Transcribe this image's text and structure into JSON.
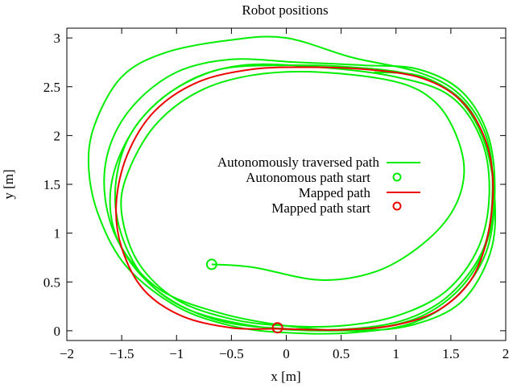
{
  "chart_data": {
    "type": "line",
    "title": "Robot positions",
    "xlabel": "x [m]",
    "ylabel": "y [m]",
    "xlim": [
      -2,
      2
    ],
    "ylim": [
      -0.1,
      3.1
    ],
    "xticks": [
      -2,
      -1.5,
      -1,
      -0.5,
      0,
      0.5,
      1,
      1.5,
      2
    ],
    "yticks": [
      0,
      0.5,
      1,
      1.5,
      2,
      2.5,
      3
    ],
    "xtick_labels": [
      "−2",
      "−1.5",
      "−1",
      "−0.5",
      "0",
      "0.5",
      "1",
      "1.5",
      "2"
    ],
    "ytick_labels": [
      "0",
      "0.5",
      "1",
      "1.5",
      "2",
      "2.5",
      "3"
    ],
    "grid": false,
    "legend_position": "center-right",
    "series": [
      {
        "name": "Autonomously traversed path",
        "color": "#00ee00",
        "style": "line",
        "points": [
          [
            -0.68,
            0.68
          ],
          [
            -0.3,
            0.65
          ],
          [
            0.3,
            0.52
          ],
          [
            0.8,
            0.6
          ],
          [
            1.2,
            0.85
          ],
          [
            1.5,
            1.2
          ],
          [
            1.62,
            1.6
          ],
          [
            1.55,
            2.0
          ],
          [
            1.35,
            2.35
          ],
          [
            1.0,
            2.55
          ],
          [
            0.3,
            2.65
          ],
          [
            -0.3,
            2.62
          ],
          [
            -0.8,
            2.45
          ],
          [
            -1.2,
            2.1
          ],
          [
            -1.45,
            1.6
          ],
          [
            -1.5,
            1.2
          ],
          [
            -1.35,
            0.7
          ],
          [
            -1.0,
            0.32
          ],
          [
            -0.5,
            0.12
          ],
          [
            0.0,
            0.05
          ],
          [
            0.5,
            0.05
          ],
          [
            1.0,
            0.15
          ],
          [
            1.45,
            0.4
          ],
          [
            1.75,
            0.85
          ],
          [
            1.85,
            1.4
          ],
          [
            1.78,
            1.95
          ],
          [
            1.5,
            2.4
          ],
          [
            1.0,
            2.6
          ],
          [
            0.3,
            2.7
          ],
          [
            -0.4,
            2.72
          ],
          [
            -0.9,
            2.55
          ],
          [
            -1.3,
            2.2
          ],
          [
            -1.55,
            1.7
          ],
          [
            -1.6,
            1.2
          ],
          [
            -1.45,
            0.75
          ],
          [
            -1.1,
            0.35
          ],
          [
            -0.6,
            0.1
          ],
          [
            0.0,
            0.02
          ],
          [
            0.6,
            0.02
          ],
          [
            1.1,
            0.12
          ],
          [
            1.5,
            0.38
          ],
          [
            1.8,
            0.85
          ],
          [
            1.88,
            1.45
          ],
          [
            1.82,
            2.0
          ],
          [
            1.58,
            2.42
          ],
          [
            1.2,
            2.65
          ],
          [
            0.6,
            2.8
          ],
          [
            0.0,
            3.0
          ],
          [
            -0.5,
            2.98
          ],
          [
            -1.1,
            2.85
          ],
          [
            -1.5,
            2.6
          ],
          [
            -1.75,
            2.1
          ],
          [
            -1.8,
            1.65
          ],
          [
            -1.7,
            1.15
          ],
          [
            -1.45,
            0.65
          ],
          [
            -1.0,
            0.25
          ],
          [
            -0.5,
            0.05
          ],
          [
            0.0,
            -0.02
          ],
          [
            0.6,
            -0.02
          ],
          [
            1.15,
            0.08
          ],
          [
            1.55,
            0.35
          ],
          [
            1.82,
            0.8
          ],
          [
            1.9,
            1.4
          ],
          [
            1.84,
            2.0
          ],
          [
            1.6,
            2.45
          ],
          [
            1.2,
            2.68
          ],
          [
            0.7,
            2.72
          ],
          [
            0.1,
            2.75
          ],
          [
            -0.5,
            2.78
          ],
          [
            -1.0,
            2.65
          ],
          [
            -1.4,
            2.3
          ],
          [
            -1.62,
            1.85
          ],
          [
            -1.65,
            1.35
          ],
          [
            -1.5,
            0.85
          ],
          [
            -1.15,
            0.42
          ],
          [
            -0.6,
            0.18
          ],
          [
            0.0,
            0.05
          ],
          [
            0.6,
            0.0
          ],
          [
            1.15,
            0.06
          ],
          [
            1.6,
            0.3
          ],
          [
            1.86,
            0.8
          ],
          [
            1.9,
            1.35
          ],
          [
            1.8,
            1.95
          ],
          [
            1.55,
            2.4
          ],
          [
            1.15,
            2.62
          ],
          [
            0.6,
            2.7
          ],
          [
            0.0,
            2.72
          ],
          [
            -0.6,
            2.68
          ],
          [
            -1.05,
            2.45
          ],
          [
            -1.4,
            2.05
          ],
          [
            -1.55,
            1.55
          ],
          [
            -1.52,
            1.05
          ],
          [
            -1.3,
            0.55
          ],
          [
            -0.9,
            0.22
          ],
          [
            -0.3,
            0.05
          ],
          [
            0.3,
            0.0
          ],
          [
            0.9,
            0.04
          ],
          [
            1.35,
            0.22
          ],
          [
            1.7,
            0.6
          ],
          [
            1.88,
            1.15
          ],
          [
            1.86,
            1.75
          ],
          [
            1.65,
            2.3
          ],
          [
            1.25,
            2.6
          ],
          [
            0.8,
            2.65
          ]
        ]
      },
      {
        "name": "Autonomous path start",
        "color": "#00ee00",
        "style": "marker",
        "points": [
          [
            -0.68,
            0.68
          ]
        ]
      },
      {
        "name": "Mapped path",
        "color": "#ee0000",
        "style": "line",
        "points": [
          [
            -0.08,
            0.02
          ],
          [
            0.5,
            0.01
          ],
          [
            1.0,
            0.06
          ],
          [
            1.4,
            0.22
          ],
          [
            1.7,
            0.55
          ],
          [
            1.85,
            1.05
          ],
          [
            1.88,
            1.6
          ],
          [
            1.78,
            2.05
          ],
          [
            1.55,
            2.4
          ],
          [
            1.2,
            2.6
          ],
          [
            0.7,
            2.68
          ],
          [
            0.2,
            2.7
          ],
          [
            -0.3,
            2.68
          ],
          [
            -0.8,
            2.55
          ],
          [
            -1.2,
            2.25
          ],
          [
            -1.45,
            1.8
          ],
          [
            -1.55,
            1.3
          ],
          [
            -1.5,
            0.85
          ],
          [
            -1.3,
            0.42
          ],
          [
            -0.95,
            0.15
          ],
          [
            -0.5,
            0.03
          ],
          [
            -0.08,
            0.02
          ]
        ]
      },
      {
        "name": "Mapped path start",
        "color": "#ee0000",
        "style": "marker",
        "points": [
          [
            -0.08,
            0.03
          ]
        ]
      }
    ]
  }
}
